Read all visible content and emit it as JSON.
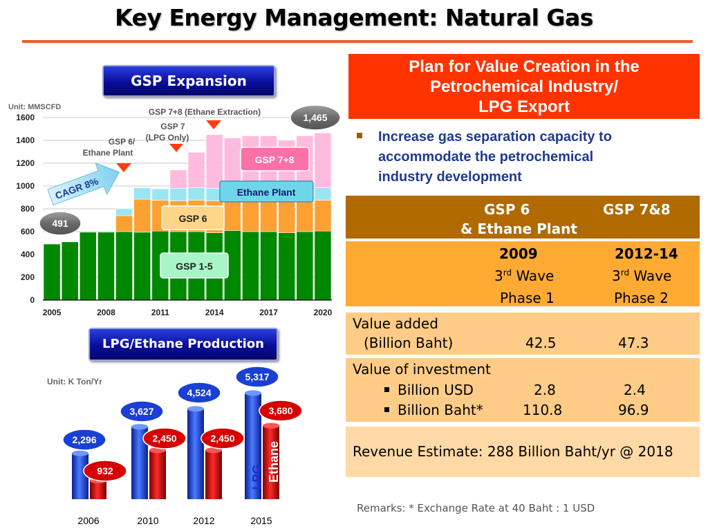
{
  "title": "Key Energy Management: Natural Gas",
  "colors": {
    "accent_rule": "#f05a28",
    "gsp15": "#008800",
    "gsp6": "#ffa033",
    "ethane_plant": "#99e6f2",
    "gsp78": "#ffbbdd",
    "lpg": "#1a46d6",
    "ethane": "#d90000",
    "plan_header": "#ff3300"
  },
  "gsp_expansion": {
    "label": "GSP Expansion",
    "unit": "Unit: MMSCFD",
    "start_label": "491",
    "end_label": "1,465",
    "cagr_label": "CAGR 8%",
    "annotation_gsp78": "GSP 7+8 (Ethane Extraction)",
    "annotation_gsp7_line1": "GSP 7",
    "annotation_gsp7_line2": "(LPG Only)",
    "annotation_gsp6_line1": "GSP 6/",
    "annotation_gsp6_line2": "Ethane Plant",
    "legend_gsp15": "GSP 1-5",
    "legend_gsp6": "GSP 6",
    "legend_ethane": "Ethane Plant",
    "legend_gsp78": "GSP 7+8"
  },
  "lpg_production": {
    "label": "LPG/Ethane Production",
    "unit": "Unit: K Ton/Yr",
    "lpg_label": "LPG",
    "ethane_label": "Ethane"
  },
  "chart_data": [
    {
      "type": "bar",
      "stacked": true,
      "x": [
        2005,
        2006,
        2007,
        2008,
        2009,
        2010,
        2011,
        2012,
        2013,
        2014,
        2015,
        2016,
        2017,
        2018,
        2019,
        2020
      ],
      "xticks": [
        "2005",
        "2008",
        "2011",
        "2014",
        "2017",
        "2020"
      ],
      "yticks": [
        "0",
        "200",
        "400",
        "600",
        "800",
        "1000",
        "1200",
        "1400",
        "1600"
      ],
      "ylim": [
        0,
        1600
      ],
      "series": [
        {
          "name": "GSP 1-5",
          "values": [
            491,
            510,
            595,
            595,
            600,
            595,
            605,
            600,
            600,
            590,
            610,
            600,
            600,
            590,
            600,
            605
          ]
        },
        {
          "name": "GSP 6",
          "values": [
            0,
            0,
            0,
            0,
            140,
            290,
            270,
            270,
            275,
            280,
            270,
            280,
            280,
            280,
            280,
            270
          ]
        },
        {
          "name": "Ethane Plant",
          "values": [
            0,
            0,
            0,
            0,
            60,
            100,
            100,
            110,
            110,
            110,
            100,
            100,
            100,
            100,
            100,
            110
          ]
        },
        {
          "name": "GSP 7+8",
          "values": [
            0,
            0,
            0,
            0,
            0,
            0,
            0,
            160,
            310,
            470,
            440,
            460,
            460,
            430,
            460,
            480
          ]
        }
      ]
    },
    {
      "type": "bar",
      "categories": [
        "2006",
        "2010",
        "2012",
        "2015"
      ],
      "series": [
        {
          "name": "LPG",
          "values": [
            2296,
            3627,
            4524,
            5317
          ],
          "labels": [
            "2,296",
            "3,627",
            "4,524",
            "5,317"
          ]
        },
        {
          "name": "Ethane",
          "values": [
            932,
            2450,
            2450,
            3680
          ],
          "labels": [
            "932",
            "2,450",
            "2,450",
            "3,680"
          ]
        }
      ],
      "ylim": [
        0,
        6000
      ]
    }
  ],
  "plan": {
    "header_line1": "Plan for Value Creation in the",
    "header_line2": "Petrochemical Industry/",
    "header_line3": "LPG Export",
    "bullet_line1": "Increase gas separation capacity to",
    "bullet_line2": "accommodate the petrochemical",
    "bullet_line3": "industry development",
    "col1_head_line1": "GSP 6",
    "col1_head_line2": "& Ethane Plant",
    "col2_head": "GSP 7&8",
    "col1_year": "2009",
    "col2_year": "2012-14",
    "col1_wave_num": "3",
    "col2_wave_num": "3",
    "wave_sup": "rd",
    "wave_word": "Wave",
    "col1_phase": "Phase 1",
    "col2_phase": "Phase 2",
    "va_line1": "Value added",
    "va_line2": "(Billion Baht)",
    "va_col1": "42.5",
    "va_col2": "47.3",
    "inv_title": "Value of investment",
    "inv_usd_label": "Billion USD",
    "inv_usd_col1": "2.8",
    "inv_usd_col2": "2.4",
    "inv_baht_label": "Billion Baht*",
    "inv_baht_col1": "110.8",
    "inv_baht_col2": "96.9",
    "revenue": "Revenue Estimate:  288 Billion Baht/yr @ 2018"
  },
  "remarks": "Remarks: * Exchange Rate at 40 Baht : 1 USD"
}
